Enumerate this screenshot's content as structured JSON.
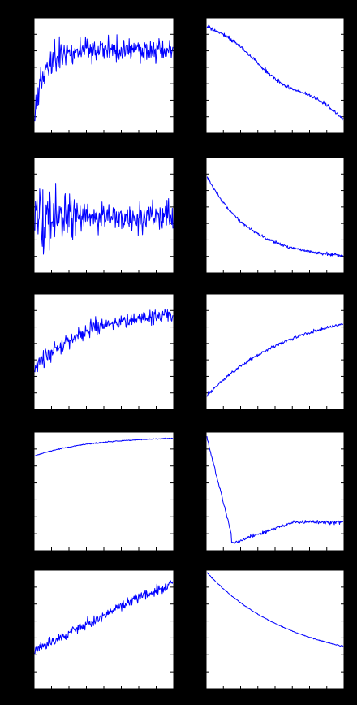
{
  "figure": {
    "background": "#000000",
    "plot_background": "#ffffff",
    "line_color": "#0000ff",
    "grid": false,
    "legend": "none"
  },
  "chart_data": [
    {
      "type": "line",
      "row": 1,
      "col": 1,
      "x_range": [
        0,
        100
      ],
      "ylim": [
        0,
        1
      ],
      "shape": "noisy-rise-plateau",
      "seed": 11
    },
    {
      "type": "line",
      "row": 1,
      "col": 2,
      "x_range": [
        0,
        100
      ],
      "ylim": [
        0,
        1
      ],
      "shape": "noisy-decline",
      "seed": 12
    },
    {
      "type": "line",
      "row": 2,
      "col": 1,
      "x_range": [
        0,
        100
      ],
      "ylim": [
        0,
        1
      ],
      "shape": "noisy-stationary",
      "seed": 21
    },
    {
      "type": "line",
      "row": 2,
      "col": 2,
      "x_range": [
        0,
        100
      ],
      "ylim": [
        0,
        1
      ],
      "shape": "decay-then-flatten",
      "seed": 22
    },
    {
      "type": "line",
      "row": 3,
      "col": 1,
      "x_range": [
        0,
        100
      ],
      "ylim": [
        0,
        1
      ],
      "shape": "noisy-saturating-rise",
      "seed": 31
    },
    {
      "type": "line",
      "row": 3,
      "col": 2,
      "x_range": [
        0,
        100
      ],
      "ylim": [
        0,
        1
      ],
      "shape": "steady-rise",
      "seed": 32
    },
    {
      "type": "line",
      "row": 4,
      "col": 1,
      "x_range": [
        0,
        100
      ],
      "ylim": [
        0,
        1
      ],
      "shape": "smooth-saturating-rise",
      "seed": 41
    },
    {
      "type": "line",
      "row": 4,
      "col": 2,
      "x_range": [
        0,
        100
      ],
      "ylim": [
        0,
        1
      ],
      "shape": "drop-then-recover",
      "seed": 42
    },
    {
      "type": "line",
      "row": 5,
      "col": 1,
      "x_range": [
        0,
        100
      ],
      "ylim": [
        0,
        1
      ],
      "shape": "noisy-linear-rise",
      "seed": 51
    },
    {
      "type": "line",
      "row": 5,
      "col": 2,
      "x_range": [
        0,
        100
      ],
      "ylim": [
        0,
        1
      ],
      "shape": "smooth-decay",
      "seed": 52
    }
  ]
}
